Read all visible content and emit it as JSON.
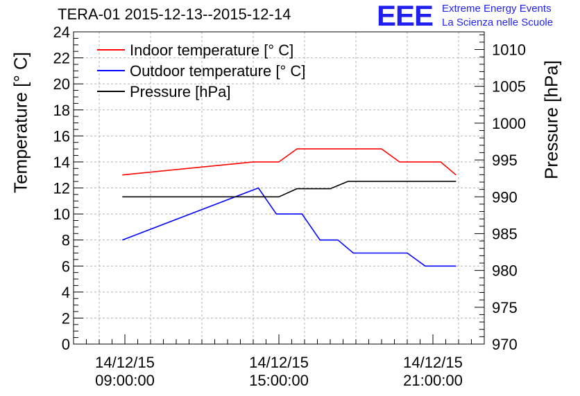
{
  "chart_data": {
    "type": "line",
    "title": "TERA-01 2015-12-13--2015-12-14",
    "logo": {
      "text": "EEE",
      "line1": "Extreme Energy Events",
      "line2": "La Scienza nelle Scuole"
    },
    "ylabel_left": "Temperature [° C]",
    "ylabel_right": "Pressure [hPa]",
    "xlabel": "",
    "x_ticks": [
      {
        "hour": 9,
        "date": "14/12/15",
        "time": "09:00:00"
      },
      {
        "hour": 15,
        "date": "14/12/15",
        "time": "15:00:00"
      },
      {
        "hour": 21,
        "date": "14/12/15",
        "time": "21:00:00"
      }
    ],
    "xlim": [
      7.0,
      23.0
    ],
    "ylim_left": [
      0,
      24
    ],
    "ylim_right": [
      970,
      1012.4
    ],
    "left_ticks": [
      0,
      2,
      4,
      6,
      8,
      10,
      12,
      14,
      16,
      18,
      20,
      22,
      24
    ],
    "right_ticks": [
      970,
      975,
      980,
      985,
      990,
      995,
      1000,
      1005,
      1010
    ],
    "grid": true,
    "legend_position": "top-left",
    "series": [
      {
        "name": "Indoor temperature [° C]",
        "color": "#ff0000",
        "axis": "left",
        "x": [
          8.9,
          14.0,
          15.0,
          15.7,
          19.0,
          19.7,
          21.3,
          21.9
        ],
        "y": [
          13.0,
          14.0,
          14.0,
          15.0,
          15.0,
          14.0,
          14.0,
          13.0
        ]
      },
      {
        "name": "Outdoor temperature [° C]",
        "color": "#0000ff",
        "axis": "left",
        "x": [
          8.9,
          14.2,
          14.9,
          15.6,
          15.9,
          15.9,
          16.6,
          17.3,
          17.5,
          18.4,
          19.0,
          19.7,
          21.9
        ],
        "y": [
          8.0,
          12.0,
          11.0,
          10.0,
          10.0,
          10.0,
          8.0,
          8.0,
          7.0,
          7.0,
          7.0,
          6.0,
          6.0
        ],
        "x_display": [
          8.9,
          14.2,
          14.9,
          15.6,
          15.9,
          16.6,
          17.3,
          17.9,
          20.0,
          20.7,
          21.9
        ],
        "y_display": [
          8.0,
          12.0,
          10.0,
          10.0,
          10.0,
          8.0,
          8.0,
          7.0,
          7.0,
          6.0,
          6.0
        ]
      },
      {
        "name": "Pressure [hPa]",
        "color": "#000000",
        "axis": "right",
        "x": [
          8.9,
          15.0,
          15.7,
          17.0,
          17.7,
          21.9
        ],
        "y": [
          990.0,
          990.0,
          991.1,
          991.1,
          992.1,
          992.1
        ]
      }
    ]
  }
}
